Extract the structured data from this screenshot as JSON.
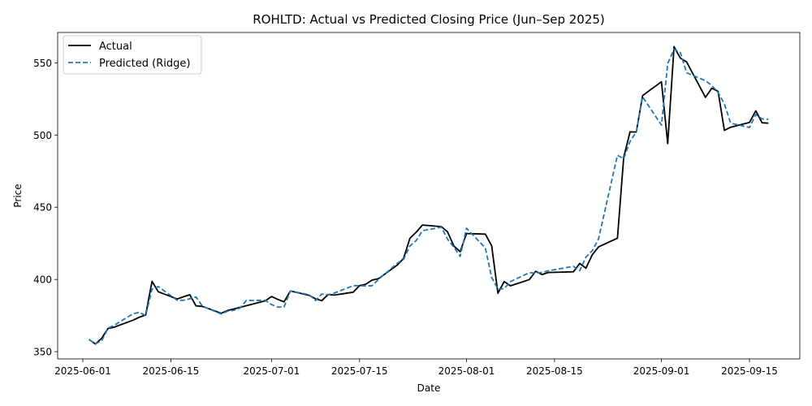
{
  "chart_data": {
    "type": "line",
    "title": "ROHLTD: Actual vs Predicted Closing Price (Jun–Sep 2025)",
    "xlabel": "Date",
    "ylabel": "Price",
    "xlim": [
      "2025-05-28",
      "2025-09-23"
    ],
    "ylim": [
      345,
      571
    ],
    "grid": false,
    "legend_position": "upper-left",
    "x_ticks": [
      "2025-06-01",
      "2025-06-15",
      "2025-07-01",
      "2025-07-15",
      "2025-08-01",
      "2025-08-15",
      "2025-09-01",
      "2025-09-15"
    ],
    "y_ticks": [
      350,
      400,
      450,
      500,
      550
    ],
    "x": [
      "2025-06-02",
      "2025-06-03",
      "2025-06-04",
      "2025-06-05",
      "2025-06-06",
      "2025-06-09",
      "2025-06-10",
      "2025-06-11",
      "2025-06-12",
      "2025-06-13",
      "2025-06-16",
      "2025-06-17",
      "2025-06-18",
      "2025-06-19",
      "2025-06-20",
      "2025-06-23",
      "2025-06-24",
      "2025-06-25",
      "2025-06-26",
      "2025-06-27",
      "2025-06-30",
      "2025-07-01",
      "2025-07-02",
      "2025-07-03",
      "2025-07-04",
      "2025-07-07",
      "2025-07-08",
      "2025-07-09",
      "2025-07-10",
      "2025-07-11",
      "2025-07-14",
      "2025-07-15",
      "2025-07-16",
      "2025-07-17",
      "2025-07-18",
      "2025-07-21",
      "2025-07-22",
      "2025-07-23",
      "2025-07-24",
      "2025-07-25",
      "2025-07-28",
      "2025-07-29",
      "2025-07-30",
      "2025-07-31",
      "2025-08-01",
      "2025-08-04",
      "2025-08-05",
      "2025-08-06",
      "2025-08-07",
      "2025-08-08",
      "2025-08-11",
      "2025-08-12",
      "2025-08-13",
      "2025-08-14",
      "2025-08-18",
      "2025-08-19",
      "2025-08-20",
      "2025-08-21",
      "2025-08-22",
      "2025-08-25",
      "2025-08-26",
      "2025-08-27",
      "2025-08-28",
      "2025-08-29",
      "2025-09-01",
      "2025-09-02",
      "2025-09-03",
      "2025-09-04",
      "2025-09-05",
      "2025-09-08",
      "2025-09-09",
      "2025-09-10",
      "2025-09-11",
      "2025-09-12",
      "2025-09-15",
      "2025-09-16",
      "2025-09-17",
      "2025-09-18"
    ],
    "series": [
      {
        "name": "Actual",
        "color": "#000000",
        "style": "solid",
        "values": [
          358.5,
          355.3,
          359.3,
          366,
          367,
          371.8,
          373.9,
          375.4,
          398.7,
          391.5,
          386.5,
          388,
          389.4,
          381.7,
          381.4,
          376.6,
          378.5,
          379.6,
          380.7,
          381.8,
          385.2,
          388.2,
          386.2,
          384.5,
          392,
          389,
          386.6,
          385.3,
          389.6,
          389.2,
          391.2,
          395.7,
          396.7,
          399.6,
          400.5,
          410,
          414.6,
          428.5,
          432.7,
          437.7,
          436.6,
          432.9,
          423.1,
          419.2,
          431.8,
          431.4,
          423.3,
          390.4,
          398.5,
          395.6,
          399.9,
          405.7,
          403.4,
          404.8,
          405.3,
          411.1,
          407.8,
          417.1,
          422.5,
          428.6,
          484.5,
          502.2,
          502.1,
          527.3,
          536.9,
          494.1,
          561.2,
          553.3,
          550.6,
          526.1,
          532.4,
          530.3,
          503.2,
          505.4,
          508.7,
          516.8,
          508.5,
          508.2
        ]
      },
      {
        "name": "Predicted (Ridge)",
        "color": "#1f77b4",
        "style": "dashed",
        "values": [
          358.3,
          355.5,
          357.4,
          366.2,
          368.3,
          376.3,
          377.2,
          374.9,
          393.3,
          395.1,
          385.6,
          385.6,
          386.6,
          387.9,
          381.6,
          376.1,
          378,
          378.7,
          380.2,
          385.4,
          385.6,
          382.6,
          380.8,
          381,
          392,
          389.4,
          385.4,
          389.9,
          389.4,
          390.6,
          395.7,
          395.7,
          395.5,
          395.7,
          399.9,
          411.2,
          413.9,
          423.2,
          426.9,
          433.7,
          436.2,
          427.9,
          422.3,
          416,
          435.5,
          421.8,
          401.4,
          393.3,
          393.6,
          398.5,
          404.7,
          404.4,
          404.9,
          406,
          409.1,
          406,
          415.5,
          419.9,
          428.1,
          486,
          483.6,
          495.5,
          502.3,
          526.4,
          506.9,
          549.5,
          559.4,
          557.2,
          543.1,
          537.6,
          534.3,
          529.5,
          521.5,
          508.2,
          505.2,
          514.2,
          511.2,
          510.9
        ]
      }
    ]
  }
}
